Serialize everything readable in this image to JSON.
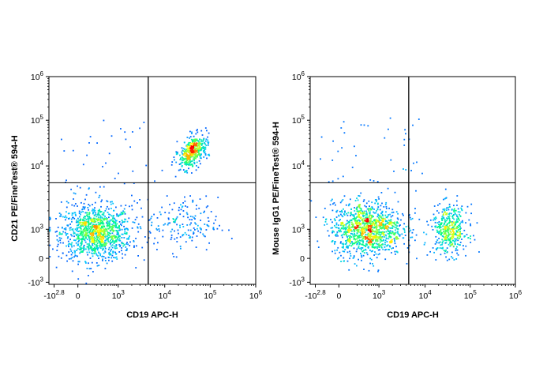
{
  "chart_data": [
    {
      "type": "scatter",
      "subtype": "flow-cytometry-density-plot",
      "xlabel": "CD19 APC-H",
      "ylabel": "CD21 PE/FineTest® 594-H",
      "x_scale": "biexponential",
      "y_scale": "biexponential",
      "x_ticks": [
        {
          "value": -631,
          "base": "-10",
          "exp": "2.8"
        },
        {
          "value": 0,
          "base": "0",
          "exp": ""
        },
        {
          "value": 1000,
          "base": "10",
          "exp": "3"
        },
        {
          "value": 10000,
          "base": "10",
          "exp": "4"
        },
        {
          "value": 100000,
          "base": "10",
          "exp": "5"
        },
        {
          "value": 1000000,
          "base": "10",
          "exp": "6"
        }
      ],
      "y_ticks": [
        {
          "value": -1000,
          "base": "-10",
          "exp": "3"
        },
        {
          "value": 0,
          "base": "0",
          "exp": ""
        },
        {
          "value": 1000,
          "base": "10",
          "exp": "3"
        },
        {
          "value": 10000,
          "base": "10",
          "exp": "4"
        },
        {
          "value": 100000,
          "base": "10",
          "exp": "5"
        },
        {
          "value": 1000000,
          "base": "10",
          "exp": "6"
        }
      ],
      "quadrant_gate": {
        "x": 4500,
        "y": 5500
      },
      "populations": [
        {
          "x": 200,
          "y": 700,
          "spread": "large",
          "density": "high"
        },
        {
          "x": 40000,
          "y": 20000,
          "spread": "small",
          "density": "medium"
        },
        {
          "x": 25000,
          "y": 1200,
          "spread": "large",
          "density": "sparse"
        }
      ],
      "color_scale": [
        "#0000ff",
        "#00c8ff",
        "#00ff80",
        "#ffff00",
        "#ff0000"
      ]
    },
    {
      "type": "scatter",
      "subtype": "flow-cytometry-density-plot",
      "xlabel": "CD19 APC-H",
      "ylabel": "Mouse IgG1 PE/FineTest® 594-H",
      "x_scale": "biexponential",
      "y_scale": "biexponential",
      "x_ticks": [
        {
          "value": -631,
          "base": "-10",
          "exp": "2.8"
        },
        {
          "value": 0,
          "base": "0",
          "exp": ""
        },
        {
          "value": 1000,
          "base": "10",
          "exp": "3"
        },
        {
          "value": 10000,
          "base": "10",
          "exp": "4"
        },
        {
          "value": 100000,
          "base": "10",
          "exp": "5"
        },
        {
          "value": 1000000,
          "base": "10",
          "exp": "6"
        }
      ],
      "y_ticks": [
        {
          "value": -1000,
          "base": "-10",
          "exp": "3"
        },
        {
          "value": 0,
          "base": "0",
          "exp": ""
        },
        {
          "value": 1000,
          "base": "10",
          "exp": "3"
        },
        {
          "value": 10000,
          "base": "10",
          "exp": "4"
        },
        {
          "value": 100000,
          "base": "10",
          "exp": "5"
        },
        {
          "value": 1000000,
          "base": "10",
          "exp": "6"
        }
      ],
      "quadrant_gate": {
        "x": 4500,
        "y": 5500
      },
      "populations": [
        {
          "x": 450,
          "y": 1000,
          "spread": "large",
          "density": "high"
        },
        {
          "x": 35000,
          "y": 900,
          "spread": "medium",
          "density": "medium"
        }
      ],
      "color_scale": [
        "#0000ff",
        "#00c8ff",
        "#00ff80",
        "#ffff00",
        "#ff0000"
      ]
    }
  ]
}
